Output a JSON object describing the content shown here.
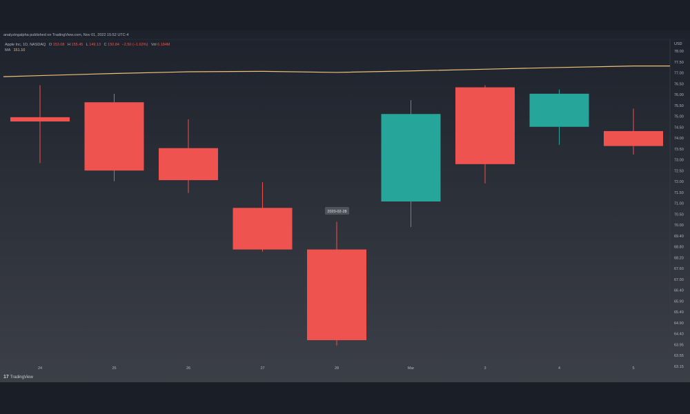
{
  "header": {
    "publish_line": "analyzingalpha published on TradingView.com, Nov 01, 2022 15:52 UTC-4"
  },
  "legend": {
    "symbol": "Apple Inc, 1D, NASDAQ",
    "o_label": "O",
    "o_value": "153.08",
    "h_label": "H",
    "h_value": "155.45",
    "l_label": "L",
    "l_value": "149.13",
    "c_label": "C",
    "c_value": "150.84",
    "change": "−2.50 (−1.63%)",
    "vol_label": "Vol",
    "vol_value": "6.184M",
    "ma_label": "MA",
    "ma_value": "151.10"
  },
  "tooltip": {
    "date": "2020-02-28"
  },
  "brand": {
    "logo": "17",
    "name": "TradingView"
  },
  "colors": {
    "up": "#26a69a",
    "down": "#ef5350",
    "ma": "#f0c27a",
    "text": "#b2b5be"
  },
  "chart_data": {
    "type": "candlestick",
    "currency": "USD",
    "ylim": [
      63.0,
      78.2
    ],
    "y_ticks": [
      "78.00",
      "77.50",
      "77.00",
      "76.50",
      "76.00",
      "75.50",
      "75.00",
      "74.50",
      "74.00",
      "73.50",
      "73.00",
      "72.50",
      "72.00",
      "71.50",
      "71.00",
      "70.50",
      "70.00",
      "69.40",
      "68.80",
      "68.20",
      "67.60",
      "67.00",
      "66.40",
      "65.90",
      "65.40",
      "64.90",
      "64.40",
      "63.95",
      "63.55",
      "63.15"
    ],
    "x_ticks": [
      "24",
      "25",
      "26",
      "27",
      "28",
      "Mar",
      "3",
      "4",
      "5"
    ],
    "candles": [
      {
        "date": "2020-02-24",
        "open": 74.55,
        "high": 76.05,
        "low": 72.4,
        "close": 74.35
      },
      {
        "date": "2020-02-25",
        "open": 75.25,
        "high": 75.65,
        "low": 71.55,
        "close": 72.05
      },
      {
        "date": "2020-02-26",
        "open": 73.1,
        "high": 74.45,
        "low": 71.0,
        "close": 71.6
      },
      {
        "date": "2020-02-27",
        "open": 70.3,
        "high": 71.5,
        "low": 68.25,
        "close": 68.35
      },
      {
        "date": "2020-02-28",
        "open": 68.35,
        "high": 69.65,
        "low": 63.85,
        "close": 64.1
      },
      {
        "date": "2020-03-02",
        "open": 70.6,
        "high": 75.35,
        "low": 69.4,
        "close": 74.7
      },
      {
        "date": "2020-03-03",
        "open": 75.95,
        "high": 76.05,
        "low": 71.45,
        "close": 72.35
      },
      {
        "date": "2020-03-04",
        "open": 74.1,
        "high": 75.85,
        "low": 73.25,
        "close": 75.65
      },
      {
        "date": "2020-03-05",
        "open": 73.9,
        "high": 74.95,
        "low": 72.8,
        "close": 73.2
      }
    ],
    "ma": [
      76.5,
      76.6,
      76.68,
      76.7,
      76.65,
      76.72,
      76.8,
      76.88,
      76.95
    ]
  }
}
